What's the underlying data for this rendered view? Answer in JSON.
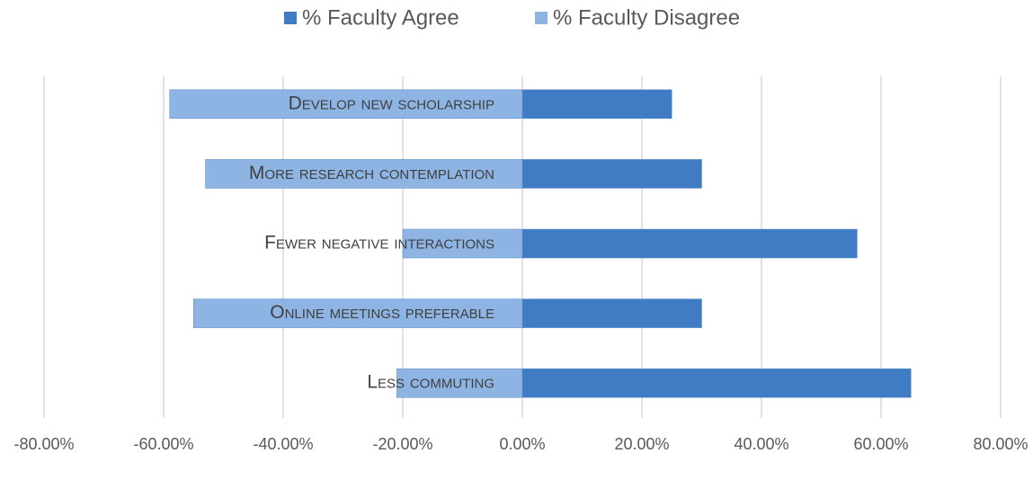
{
  "chart_data": {
    "type": "diverging-bar",
    "categories": [
      "Develop new scholarship",
      "More research contemplation",
      "Fewer negative interactions",
      "Online meetings preferable",
      "Less commuting"
    ],
    "series": [
      {
        "name": "% Faculty Agree",
        "color": "#3f7cc4",
        "values": [
          25,
          30,
          56,
          30,
          65
        ]
      },
      {
        "name": "% Faculty Disagree",
        "color": "#8db4e2",
        "values": [
          -59,
          -53,
          -20,
          -55,
          -21
        ]
      }
    ],
    "xlim": [
      -80,
      80
    ],
    "xticks": [
      {
        "value": -80,
        "label": "-80.00%"
      },
      {
        "value": -60,
        "label": "-60.00%"
      },
      {
        "value": -40,
        "label": "-40.00%"
      },
      {
        "value": -20,
        "label": "-20.00%"
      },
      {
        "value": 0,
        "label": "0.00%"
      },
      {
        "value": 20,
        "label": "20.00%"
      },
      {
        "value": 40,
        "label": "40.00%"
      },
      {
        "value": 60,
        "label": "60.00%"
      },
      {
        "value": 80,
        "label": "80.00%"
      }
    ],
    "grid": true,
    "legend": "top"
  }
}
